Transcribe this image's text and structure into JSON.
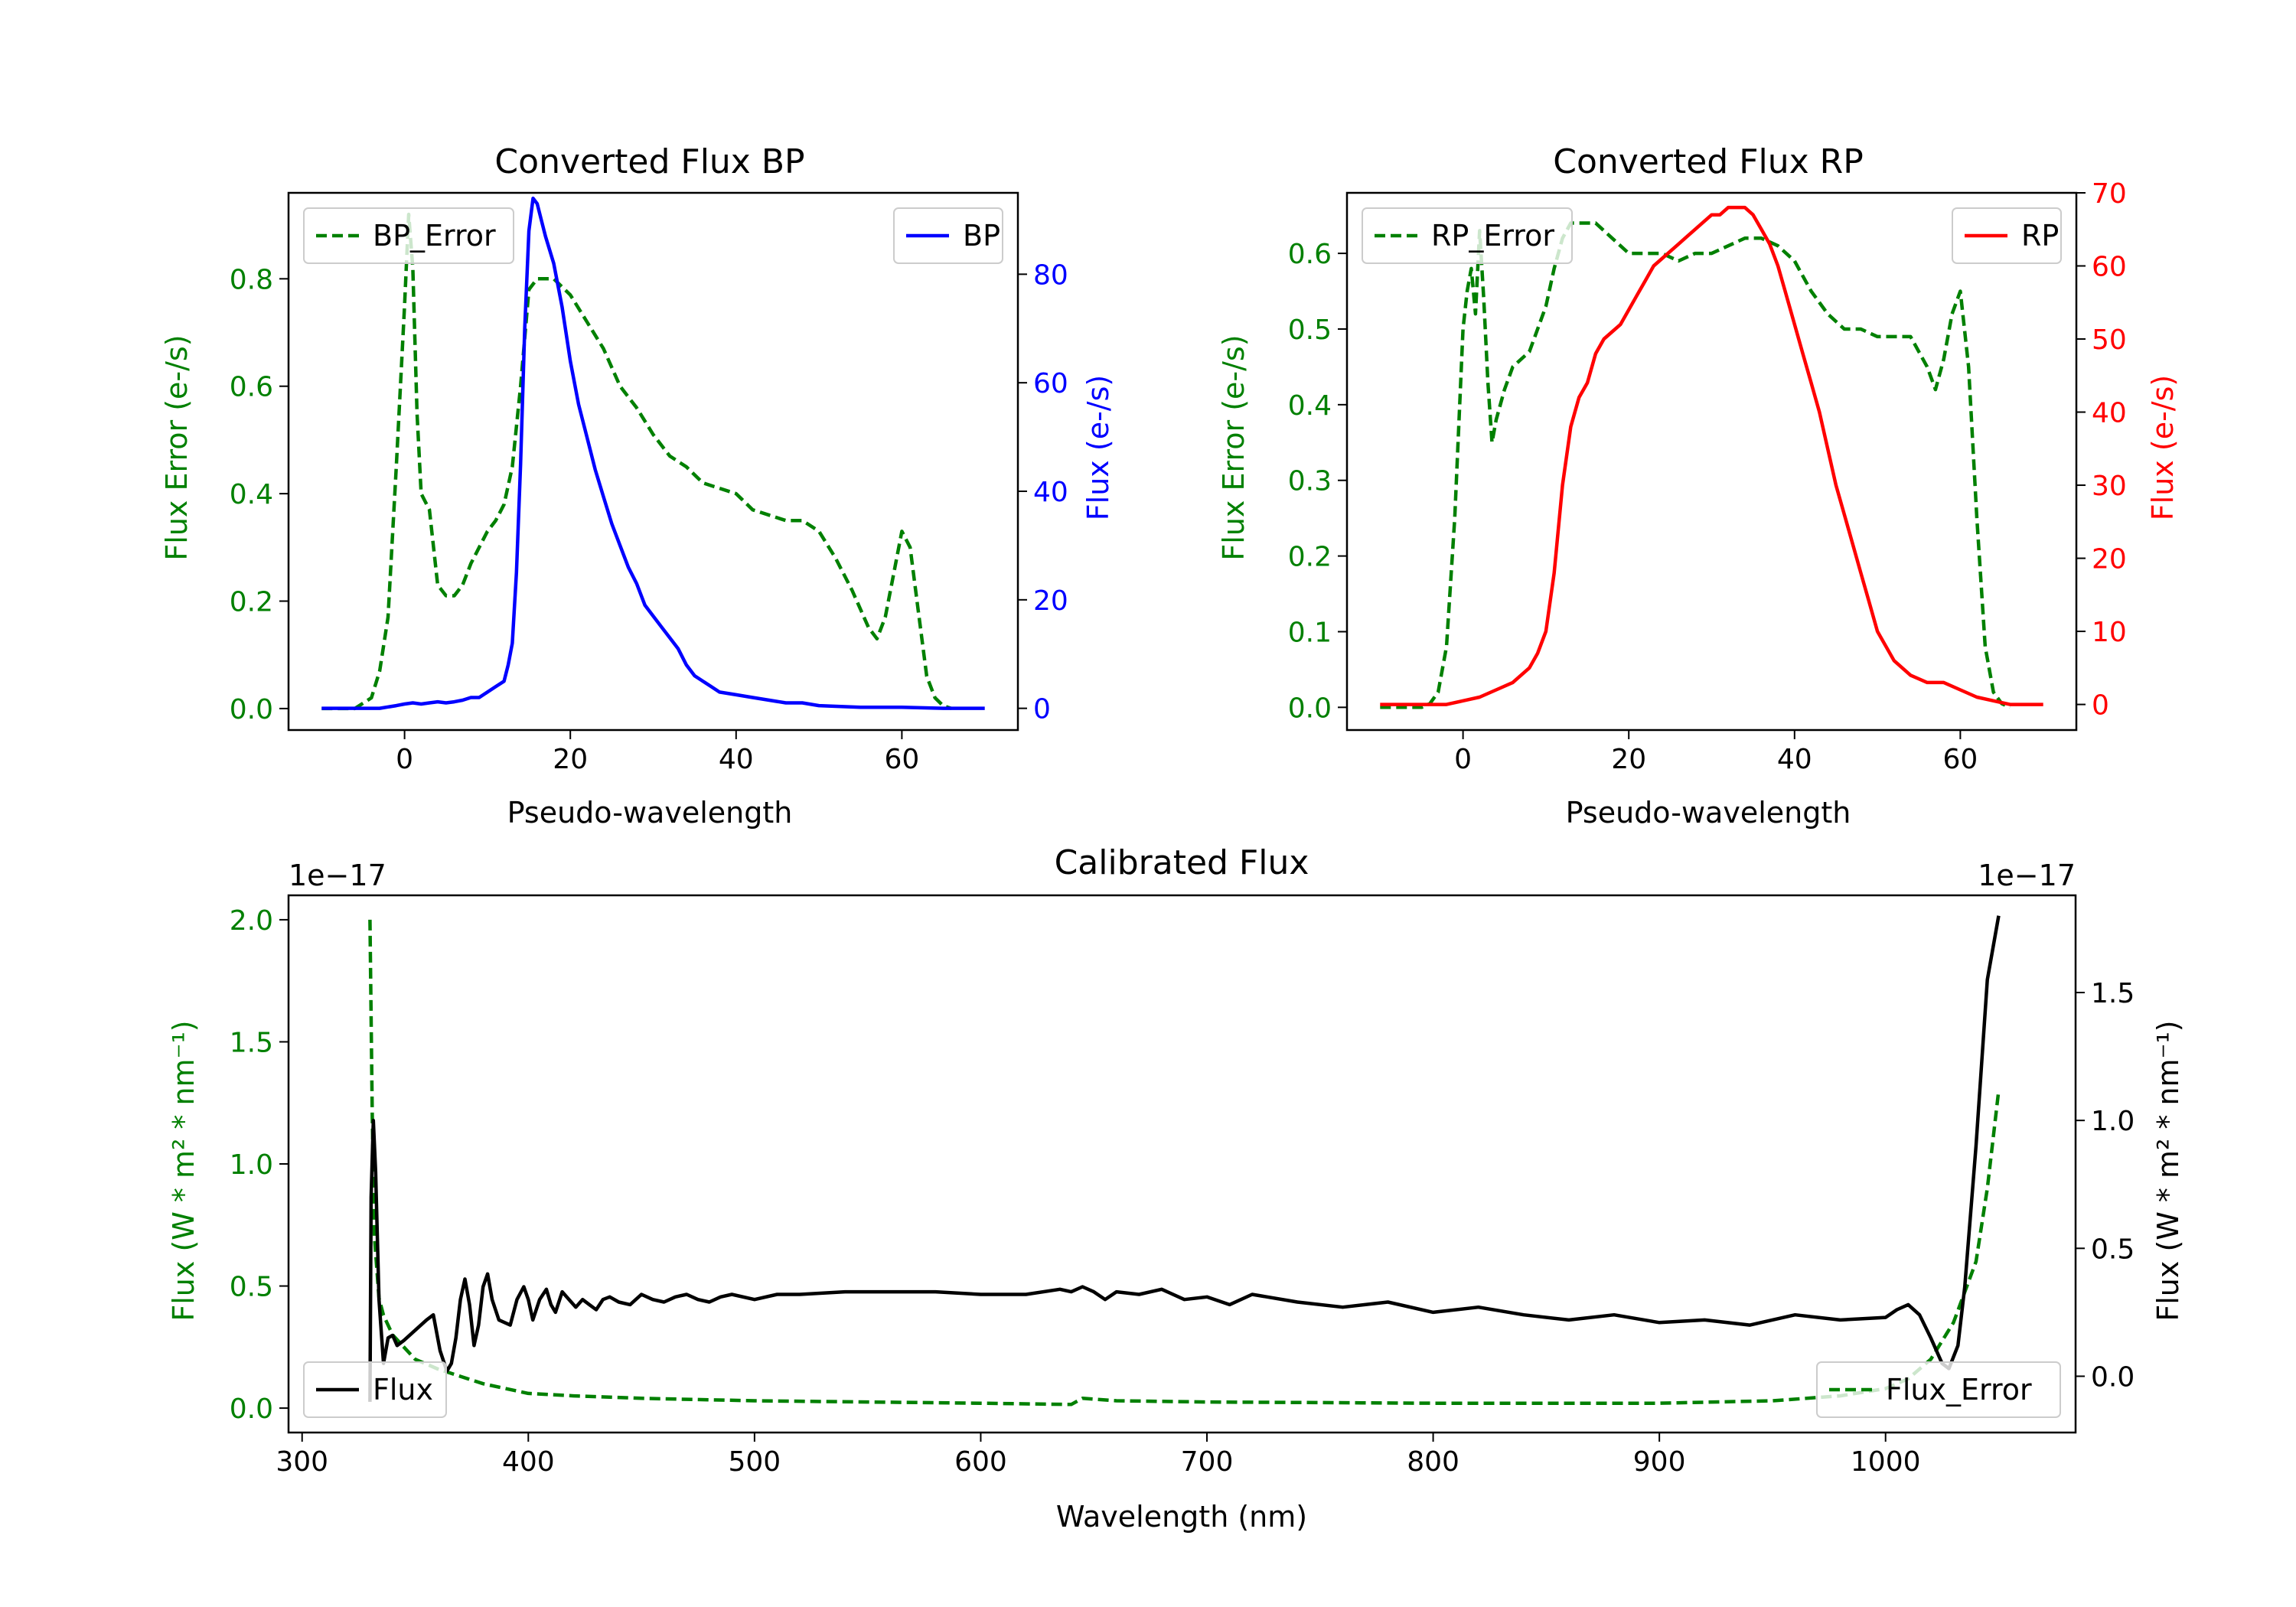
{
  "chart_data": [
    {
      "id": "bp",
      "type": "line",
      "title": "Converted Flux BP",
      "xlabel": "Pseudo-wavelength",
      "xlim": [
        -14,
        74
      ],
      "xticks": [
        0,
        20,
        40,
        60
      ],
      "left_axis": {
        "label": "Flux Error (e-/s)",
        "color": "#008000",
        "ylim": [
          -0.04,
          0.96
        ],
        "ticks": [
          0.0,
          0.2,
          0.4,
          0.6,
          0.8
        ],
        "tick_labels": [
          "0.0",
          "0.2",
          "0.4",
          "0.6",
          "0.8"
        ]
      },
      "right_axis": {
        "label": "Flux (e-/s)",
        "color": "#0000ff",
        "ylim": [
          -4,
          95
        ],
        "ticks": [
          0,
          20,
          40,
          60,
          80
        ],
        "tick_labels": [
          "0",
          "20",
          "40",
          "60",
          "80"
        ]
      },
      "series": [
        {
          "name": "BP_Error",
          "axis": "left",
          "style": "dashed",
          "color": "#008000",
          "x": [
            -10,
            -6,
            -4,
            -3,
            -2,
            -1,
            0,
            0.5,
            1,
            1.5,
            2,
            3,
            4,
            5,
            6,
            7,
            8,
            9,
            10,
            11,
            12,
            13,
            14,
            15,
            16,
            18,
            20,
            22,
            24,
            26,
            28,
            30,
            32,
            34,
            36,
            38,
            40,
            42,
            44,
            46,
            48,
            50,
            52,
            54,
            56,
            57,
            58,
            59,
            60,
            61,
            62,
            63,
            64,
            65,
            66
          ],
          "values": [
            0.0,
            0.0,
            0.02,
            0.07,
            0.17,
            0.45,
            0.75,
            0.92,
            0.82,
            0.55,
            0.4,
            0.37,
            0.23,
            0.21,
            0.21,
            0.23,
            0.27,
            0.3,
            0.33,
            0.35,
            0.38,
            0.45,
            0.6,
            0.78,
            0.8,
            0.8,
            0.77,
            0.72,
            0.67,
            0.6,
            0.56,
            0.51,
            0.47,
            0.45,
            0.42,
            0.41,
            0.4,
            0.37,
            0.36,
            0.35,
            0.35,
            0.33,
            0.28,
            0.22,
            0.15,
            0.13,
            0.17,
            0.25,
            0.33,
            0.3,
            0.18,
            0.06,
            0.02,
            0.005,
            0.0
          ]
        },
        {
          "name": "BP",
          "axis": "right",
          "style": "solid",
          "color": "#0000ff",
          "x": [
            -10,
            -6,
            -3,
            -1,
            0,
            1,
            2,
            3,
            4,
            5,
            6,
            7,
            8,
            9,
            10,
            11,
            12,
            12.5,
            13,
            13.5,
            14,
            14.5,
            15,
            15.5,
            16,
            16.5,
            17,
            18,
            19,
            20,
            21,
            22,
            23,
            24,
            25,
            26,
            27,
            28,
            29,
            30,
            31,
            32,
            33,
            34,
            35,
            36,
            37,
            38,
            40,
            42,
            44,
            46,
            48,
            50,
            55,
            60,
            65,
            70
          ],
          "values": [
            0,
            0,
            0,
            0.5,
            0.8,
            1,
            0.8,
            1,
            1.2,
            1,
            1.2,
            1.5,
            2,
            2,
            3,
            4,
            5,
            8,
            12,
            25,
            45,
            70,
            88,
            94,
            93,
            90,
            87,
            82,
            74,
            64,
            56,
            50,
            44,
            39,
            34,
            30,
            26,
            23,
            19,
            17,
            15,
            13,
            11,
            8,
            6,
            5,
            4,
            3,
            2.5,
            2,
            1.5,
            1,
            1,
            0.5,
            0.2,
            0.2,
            0,
            0
          ]
        }
      ],
      "legends": [
        {
          "label": "BP_Error",
          "placement": "top-left"
        },
        {
          "label": "BP",
          "placement": "top-right"
        }
      ]
    },
    {
      "id": "rp",
      "type": "line",
      "title": "Converted Flux RP",
      "xlabel": "Pseudo-wavelength",
      "xlim": [
        -14,
        74
      ],
      "xticks": [
        0,
        20,
        40,
        60
      ],
      "left_axis": {
        "label": "Flux Error (e-/s)",
        "color": "#008000",
        "ylim": [
          -0.03,
          0.68
        ],
        "ticks": [
          0.0,
          0.1,
          0.2,
          0.3,
          0.4,
          0.5,
          0.6
        ],
        "tick_labels": [
          "0.0",
          "0.1",
          "0.2",
          "0.3",
          "0.4",
          "0.5",
          "0.6"
        ]
      },
      "right_axis": {
        "label": "Flux (e-/s)",
        "color": "#ff0000",
        "ylim": [
          -3.5,
          70
        ],
        "ticks": [
          0,
          10,
          20,
          30,
          40,
          50,
          60,
          70
        ],
        "tick_labels": [
          "0",
          "10",
          "20",
          "30",
          "40",
          "50",
          "60",
          "70"
        ]
      },
      "series": [
        {
          "name": "RP_Error",
          "axis": "left",
          "style": "dashed",
          "color": "#008000",
          "x": [
            -10,
            -5,
            -4,
            -3,
            -2,
            -1,
            0,
            0.5,
            1,
            1.5,
            2,
            2.5,
            3,
            3.5,
            4,
            5,
            6,
            7,
            8,
            9,
            10,
            11,
            12,
            13,
            14,
            15,
            16,
            18,
            20,
            22,
            24,
            26,
            28,
            30,
            32,
            34,
            36,
            38,
            40,
            42,
            44,
            46,
            48,
            50,
            52,
            54,
            55,
            56,
            57,
            58,
            59,
            60,
            61,
            62,
            63,
            64,
            65,
            66
          ],
          "values": [
            0.0,
            0.0,
            0.005,
            0.02,
            0.08,
            0.25,
            0.5,
            0.55,
            0.58,
            0.52,
            0.63,
            0.54,
            0.43,
            0.35,
            0.38,
            0.42,
            0.45,
            0.46,
            0.47,
            0.5,
            0.53,
            0.58,
            0.62,
            0.64,
            0.64,
            0.64,
            0.64,
            0.62,
            0.6,
            0.6,
            0.6,
            0.59,
            0.6,
            0.6,
            0.61,
            0.62,
            0.62,
            0.61,
            0.59,
            0.55,
            0.52,
            0.5,
            0.5,
            0.49,
            0.49,
            0.49,
            0.47,
            0.45,
            0.42,
            0.46,
            0.52,
            0.55,
            0.45,
            0.25,
            0.08,
            0.02,
            0.005,
            0.0
          ]
        },
        {
          "name": "RP",
          "axis": "right",
          "style": "solid",
          "color": "#ff0000",
          "x": [
            -10,
            -5,
            -2,
            0,
            2,
            4,
            6,
            8,
            9,
            10,
            11,
            12,
            13,
            14,
            15,
            16,
            17,
            18,
            19,
            20,
            21,
            22,
            23,
            24,
            25,
            26,
            27,
            28,
            29,
            30,
            31,
            32,
            33,
            34,
            35,
            36,
            37,
            38,
            39,
            40,
            41,
            42,
            43,
            44,
            45,
            46,
            47,
            48,
            49,
            50,
            52,
            54,
            56,
            58,
            60,
            62,
            64,
            66,
            70
          ],
          "values": [
            0,
            0,
            0,
            0.5,
            1,
            2,
            3,
            5,
            7,
            10,
            18,
            30,
            38,
            42,
            44,
            48,
            50,
            51,
            52,
            54,
            56,
            58,
            60,
            61,
            62,
            63,
            64,
            65,
            66,
            67,
            67,
            68,
            68,
            68,
            67,
            65,
            63,
            60,
            56,
            52,
            48,
            44,
            40,
            35,
            30,
            26,
            22,
            18,
            14,
            10,
            6,
            4,
            3,
            3,
            2,
            1,
            0.5,
            0,
            0
          ]
        }
      ],
      "legends": [
        {
          "label": "RP_Error",
          "placement": "top-left"
        },
        {
          "label": "RP",
          "placement": "top-right"
        }
      ]
    },
    {
      "id": "cal",
      "type": "line",
      "title": "Calibrated Flux",
      "xlabel": "Wavelength (nm)",
      "xlim": [
        294,
        1084
      ],
      "xticks": [
        300,
        400,
        500,
        600,
        700,
        800,
        900,
        1000
      ],
      "left_axis": {
        "label": "Flux (W * m² * nm⁻¹)",
        "color": "#008000",
        "offset_text": "1e−17",
        "ylim": [
          -0.1,
          2.1
        ],
        "ticks": [
          0.0,
          0.5,
          1.0,
          1.5,
          2.0
        ],
        "tick_labels": [
          "0.0",
          "0.5",
          "1.0",
          "1.5",
          "2.0"
        ]
      },
      "right_axis": {
        "label": "Flux (W * m² * nm⁻¹)",
        "color": "#000000",
        "offset_text": "1e−17",
        "ylim": [
          -0.22,
          1.88
        ],
        "ticks": [
          0.0,
          0.5,
          1.0,
          1.5
        ],
        "tick_labels": [
          "0.0",
          "0.5",
          "1.0",
          "1.5"
        ]
      },
      "series": [
        {
          "name": "Flux_Error",
          "axis": "left",
          "style": "dashed",
          "color": "#008000",
          "x": [
            330,
            331,
            332,
            334,
            336,
            340,
            345,
            350,
            360,
            370,
            380,
            390,
            400,
            420,
            450,
            500,
            550,
            600,
            640,
            645,
            660,
            700,
            800,
            900,
            950,
            980,
            1000,
            1010,
            1020,
            1030,
            1040,
            1045,
            1050
          ],
          "values": [
            2.0,
            1.2,
            0.7,
            0.45,
            0.38,
            0.3,
            0.25,
            0.2,
            0.16,
            0.13,
            0.1,
            0.08,
            0.06,
            0.05,
            0.04,
            0.03,
            0.025,
            0.02,
            0.015,
            0.04,
            0.03,
            0.025,
            0.02,
            0.02,
            0.03,
            0.05,
            0.08,
            0.12,
            0.2,
            0.35,
            0.6,
            0.9,
            1.3
          ]
        },
        {
          "name": "Flux",
          "axis": "right",
          "style": "solid",
          "color": "#000000",
          "x": [
            330,
            330.5,
            331.5,
            332.5,
            334,
            336,
            337,
            338,
            340,
            342,
            345,
            350,
            355,
            358,
            361,
            364,
            366,
            368,
            370,
            372,
            374,
            376,
            378,
            380,
            382,
            384,
            387,
            392,
            395,
            398,
            400,
            402,
            405,
            408,
            410,
            412,
            415,
            418,
            421,
            424,
            427,
            430,
            433,
            436,
            440,
            445,
            450,
            455,
            460,
            465,
            470,
            475,
            480,
            485,
            490,
            500,
            510,
            520,
            540,
            560,
            580,
            600,
            620,
            635,
            640,
            645,
            650,
            655,
            660,
            670,
            680,
            690,
            700,
            710,
            720,
            740,
            760,
            780,
            800,
            820,
            840,
            860,
            880,
            900,
            920,
            940,
            960,
            980,
            1000,
            1005,
            1010,
            1015,
            1020,
            1025,
            1028,
            1032,
            1035,
            1040,
            1045,
            1050
          ],
          "values": [
            -0.1,
            0.7,
            1.0,
            0.8,
            0.3,
            0.05,
            0.1,
            0.15,
            0.16,
            0.12,
            0.14,
            0.18,
            0.22,
            0.24,
            0.1,
            0.02,
            0.05,
            0.15,
            0.3,
            0.38,
            0.28,
            0.12,
            0.2,
            0.35,
            0.4,
            0.3,
            0.22,
            0.2,
            0.3,
            0.35,
            0.3,
            0.22,
            0.3,
            0.34,
            0.28,
            0.25,
            0.33,
            0.3,
            0.27,
            0.3,
            0.28,
            0.26,
            0.3,
            0.31,
            0.29,
            0.28,
            0.32,
            0.3,
            0.29,
            0.31,
            0.32,
            0.3,
            0.29,
            0.31,
            0.32,
            0.3,
            0.32,
            0.32,
            0.33,
            0.33,
            0.33,
            0.32,
            0.32,
            0.34,
            0.33,
            0.35,
            0.33,
            0.3,
            0.33,
            0.32,
            0.34,
            0.3,
            0.31,
            0.28,
            0.32,
            0.29,
            0.27,
            0.29,
            0.25,
            0.27,
            0.24,
            0.22,
            0.24,
            0.21,
            0.22,
            0.2,
            0.24,
            0.22,
            0.23,
            0.26,
            0.28,
            0.24,
            0.15,
            0.05,
            0.03,
            0.12,
            0.35,
            0.9,
            1.55,
            1.8
          ]
        }
      ],
      "legends": [
        {
          "label": "Flux",
          "placement": "bottom-left"
        },
        {
          "label": "Flux_Error",
          "placement": "bottom-right"
        }
      ]
    }
  ]
}
